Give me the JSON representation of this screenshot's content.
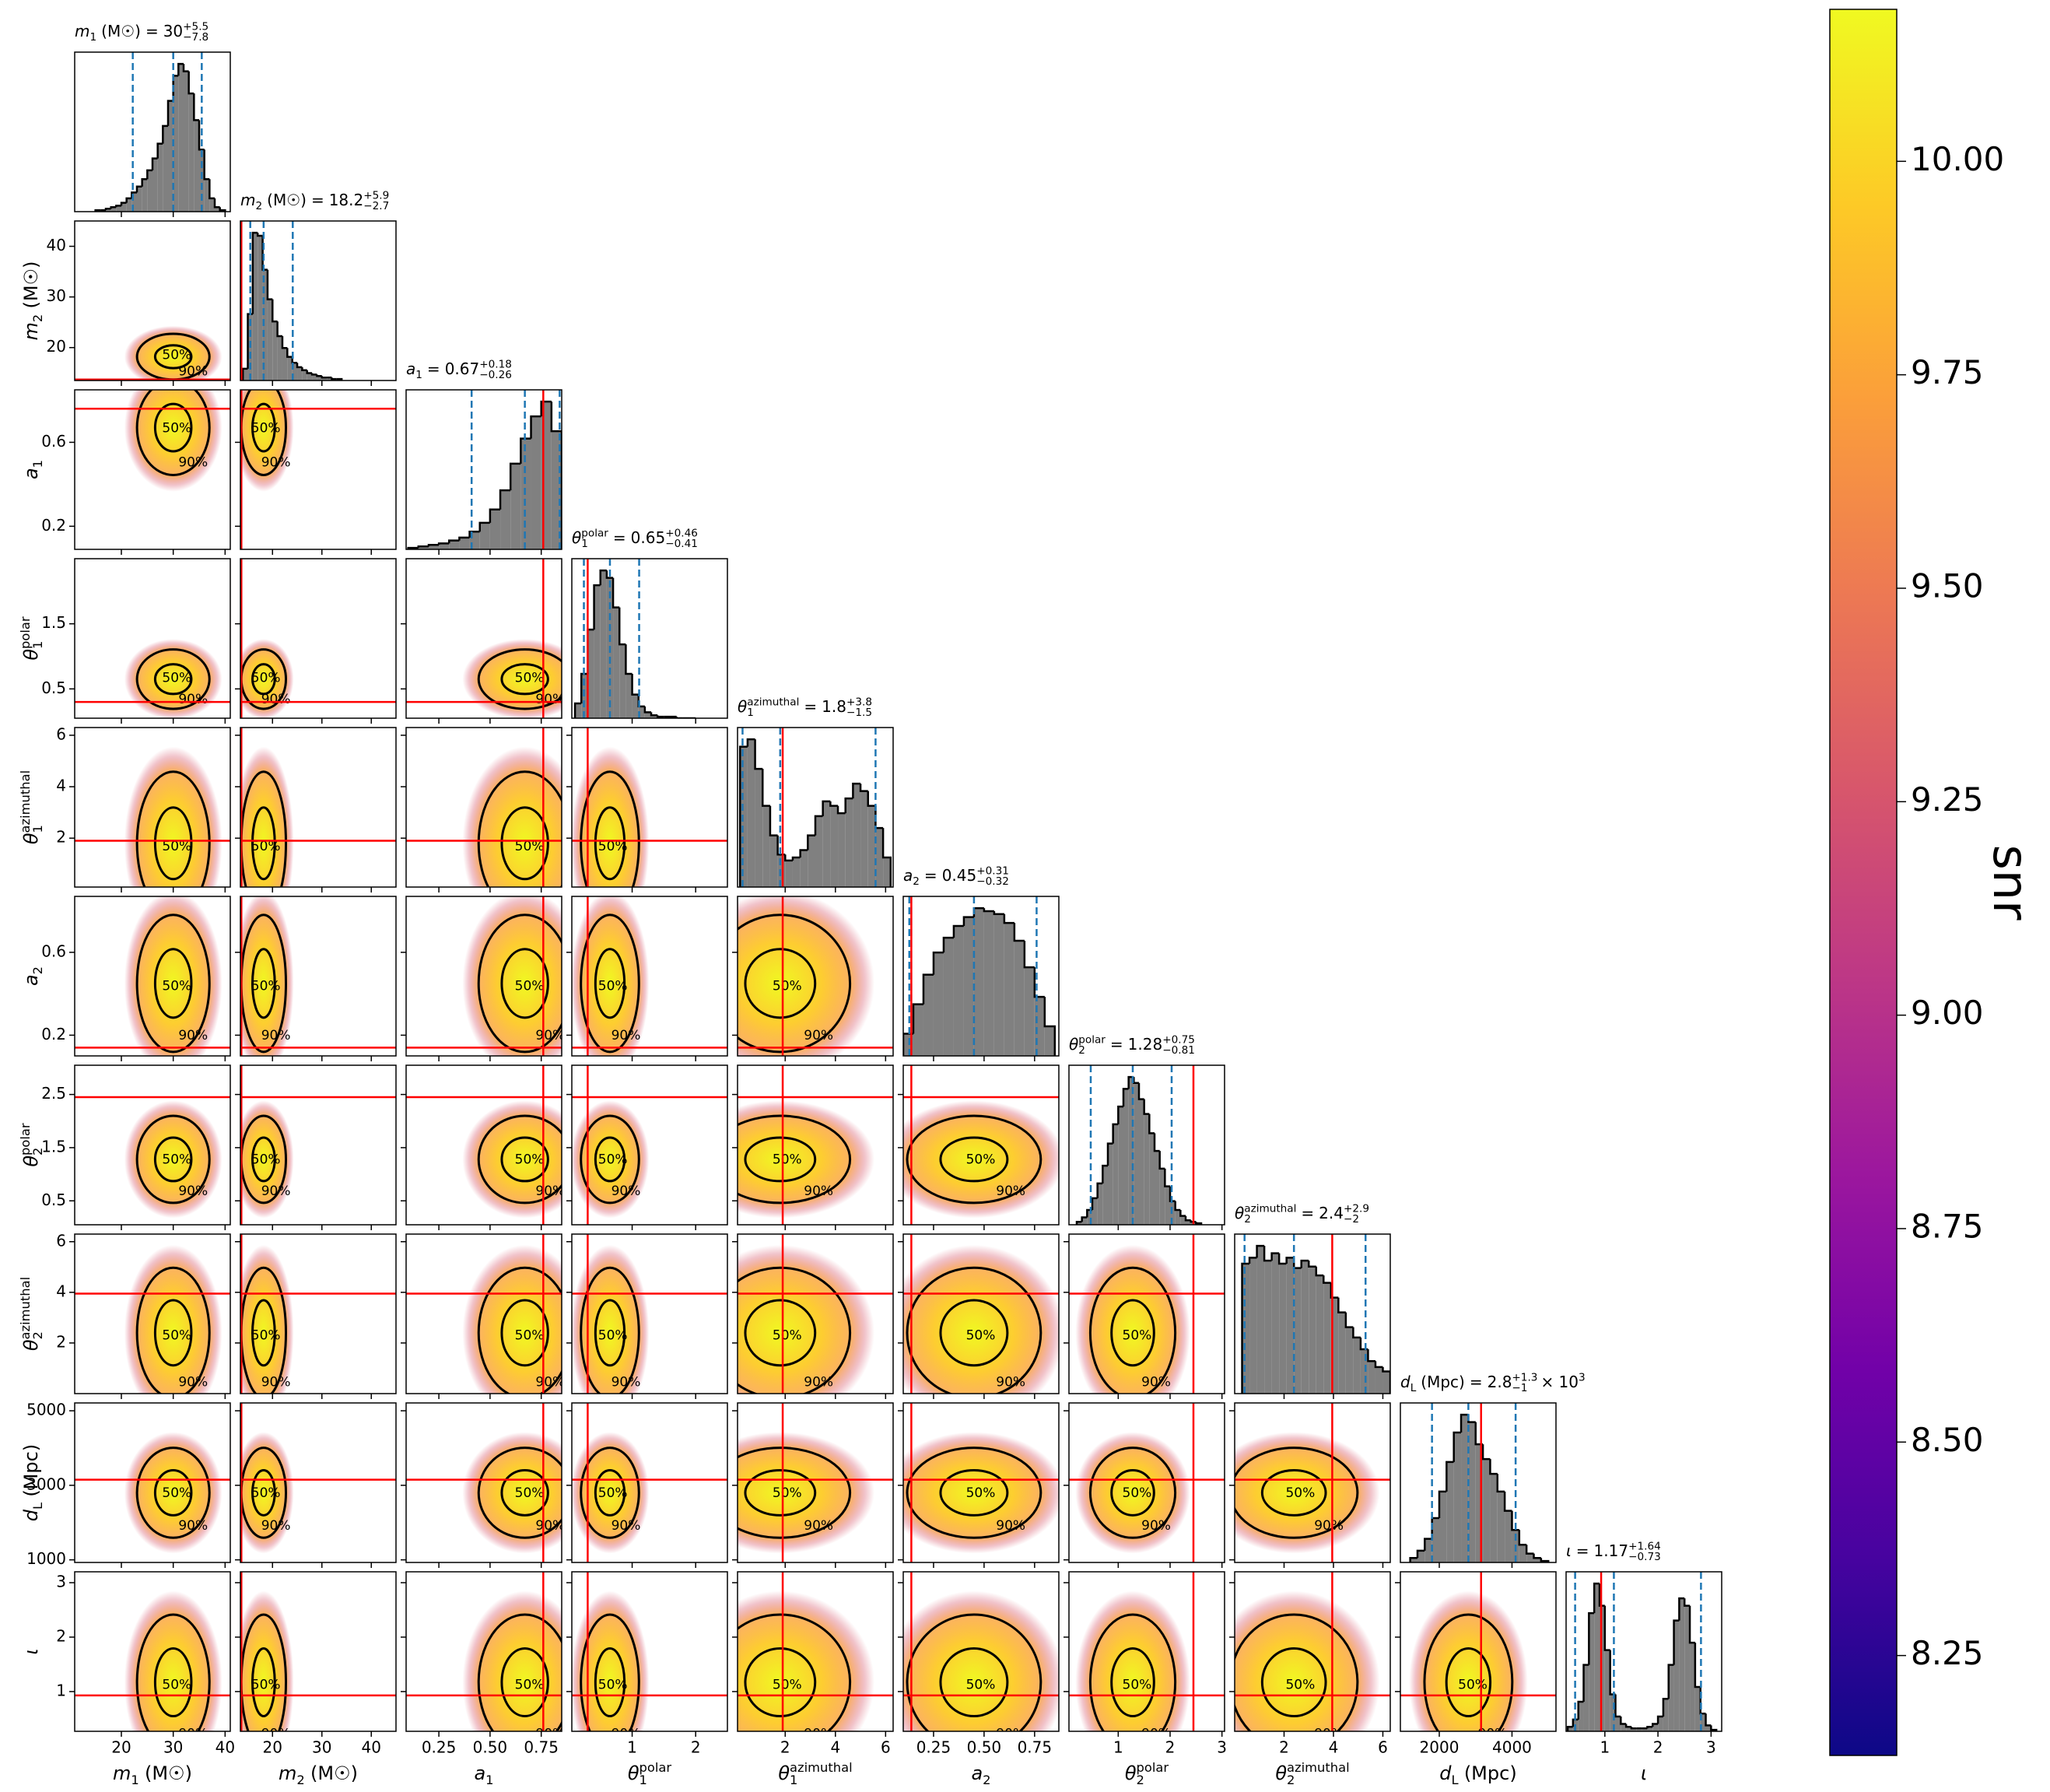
{
  "chart_data": {
    "type": "corner",
    "equals": "=",
    "contour_labels": [
      "50%",
      "90%"
    ],
    "hist_ylim": [
      0,
      108
    ],
    "hist_color": "#808080",
    "quantile_color": "#1f77b4",
    "truth_color": "#ff0000",
    "contour_color": "#000000",
    "colorbar": {
      "label": "snr",
      "lim": [
        8.133,
        10.178
      ],
      "ticks": [
        8.25,
        {
          "value": 8.5,
          "label": "8.50"
        },
        8.75,
        {
          "value": 9,
          "label": "9.00"
        },
        9.25,
        {
          "value": 9.5,
          "label": "9.50"
        },
        9.75,
        {
          "value": 10,
          "label": "10.00"
        }
      ],
      "colors": [
        "#0d0887",
        "#46039f",
        "#7201a8",
        "#9c179e",
        "#bd3786",
        "#d8576b",
        "#ed7953",
        "#fb9f3a",
        "#fdca26",
        "#f0f921"
      ]
    },
    "params": [
      {
        "symbol": "m",
        "sub": "1",
        "unit": "(M☉)",
        "median": "30",
        "plus": "+5.5",
        "minus": "−7.8",
        "lim": [
          11,
          41
        ],
        "xticks": [
          20,
          30,
          40
        ],
        "bins": [
          15,
          16,
          17,
          18,
          19,
          20,
          21,
          22,
          23,
          24,
          25,
          26,
          27,
          28,
          29,
          30,
          31,
          32,
          33,
          34,
          35,
          36,
          37,
          38,
          39,
          40
        ],
        "counts": [
          1,
          1,
          2,
          3,
          4,
          6,
          9,
          13,
          17,
          22,
          28,
          36,
          46,
          58,
          75,
          92,
          100,
          95,
          80,
          62,
          42,
          22,
          9,
          3,
          1
        ],
        "quantiles": [
          22.2,
          30,
          35.5
        ]
      },
      {
        "symbol": "m",
        "sub": "2",
        "unit": "(M☉)",
        "median": "18.2",
        "plus": "+5.9",
        "minus": "−2.7",
        "lim": [
          13.5,
          45
        ],
        "xticks": [
          20,
          30,
          40
        ],
        "yticks": [
          20,
          30,
          40
        ],
        "bins": [
          14,
          15,
          16,
          17,
          18,
          19,
          20,
          21,
          22,
          23,
          24,
          25,
          26,
          27,
          28,
          29,
          30,
          31,
          32,
          33,
          34
        ],
        "counts": [
          8,
          45,
          100,
          98,
          75,
          55,
          40,
          30,
          22,
          16,
          12,
          9,
          7,
          5,
          4,
          3,
          2,
          2,
          1,
          1
        ],
        "quantiles": [
          15.5,
          18.2,
          24.1
        ],
        "truth": 13.7
      },
      {
        "symbol": "a",
        "sub": "1",
        "median": "0.67",
        "plus": "+0.18",
        "minus": "−0.26",
        "lim": [
          0.09,
          0.85
        ],
        "xticks": [
          0.25,
          {
            "value": 0.5,
            "label": "0.50"
          },
          0.75
        ],
        "yticks": [
          0.2,
          0.6
        ],
        "bins": [
          0.1,
          0.15,
          0.2,
          0.25,
          0.3,
          0.35,
          0.4,
          0.45,
          0.5,
          0.55,
          0.6,
          0.65,
          0.7,
          0.75,
          0.8,
          0.85
        ],
        "counts": [
          1,
          2,
          3,
          4,
          6,
          8,
          12,
          18,
          27,
          40,
          58,
          75,
          90,
          100,
          80
        ],
        "quantiles": [
          0.41,
          0.67,
          0.84
        ],
        "truth": 0.76
      },
      {
        "symbol": "θ",
        "sub": "1",
        "sup": "polar",
        "median": "0.65",
        "plus": "+0.46",
        "minus": "−0.41",
        "lim": [
          0.05,
          2.5
        ],
        "xticks": [
          1,
          2
        ],
        "yticks": [
          0.5,
          1.5
        ],
        "bins": [
          0.1,
          0.2,
          0.3,
          0.4,
          0.5,
          0.6,
          0.7,
          0.8,
          0.9,
          1.0,
          1.1,
          1.2,
          1.3,
          1.4,
          1.5,
          1.6,
          1.7,
          1.8,
          1.9,
          2.0
        ],
        "counts": [
          10,
          30,
          60,
          90,
          100,
          95,
          75,
          50,
          30,
          16,
          8,
          4,
          2,
          1,
          1,
          1,
          0,
          0,
          0
        ],
        "quantiles": [
          0.24,
          0.65,
          1.11
        ],
        "truth": 0.3
      },
      {
        "symbol": "θ",
        "sub": "1",
        "sup": "azimuthal",
        "median": "1.8",
        "plus": "+3.8",
        "minus": "−1.5",
        "lim": [
          0.1,
          6.3
        ],
        "xticks": [
          2,
          4,
          6
        ],
        "yticks": [
          2,
          4,
          6
        ],
        "bins": [
          0.2,
          0.5,
          0.8,
          1.1,
          1.4,
          1.7,
          2.0,
          2.3,
          2.6,
          2.9,
          3.2,
          3.5,
          3.8,
          4.1,
          4.4,
          4.7,
          5.0,
          5.3,
          5.6,
          5.9,
          6.2
        ],
        "counts": [
          95,
          100,
          80,
          55,
          35,
          22,
          18,
          20,
          25,
          35,
          48,
          58,
          55,
          50,
          60,
          70,
          65,
          55,
          40,
          20
        ],
        "quantiles": [
          0.3,
          1.8,
          5.6
        ],
        "truth": 1.9
      },
      {
        "symbol": "a",
        "sub": "2",
        "median": "0.45",
        "plus": "+0.31",
        "minus": "−0.32",
        "lim": [
          0.1,
          0.87
        ],
        "xticks": [
          0.25,
          {
            "value": 0.5,
            "label": "0.50"
          },
          0.75
        ],
        "yticks": [
          0.2,
          0.6
        ],
        "bins": [
          0.1,
          0.15,
          0.2,
          0.25,
          0.3,
          0.35,
          0.4,
          0.45,
          0.5,
          0.55,
          0.6,
          0.65,
          0.7,
          0.75,
          0.8,
          0.85
        ],
        "counts": [
          15,
          35,
          55,
          70,
          80,
          88,
          94,
          100,
          98,
          96,
          90,
          78,
          60,
          40,
          20
        ],
        "quantiles": [
          0.13,
          0.45,
          0.76
        ],
        "truth": 0.14
      },
      {
        "symbol": "θ",
        "sub": "2",
        "sup": "polar",
        "median": "1.28",
        "plus": "+0.75",
        "minus": "−0.81",
        "lim": [
          0.05,
          3.05
        ],
        "xticks": [
          1,
          2,
          3
        ],
        "yticks": [
          0.5,
          1.5,
          2.5
        ],
        "bins": [
          0.2,
          0.3,
          0.4,
          0.5,
          0.6,
          0.7,
          0.8,
          0.9,
          1.0,
          1.1,
          1.2,
          1.3,
          1.4,
          1.5,
          1.6,
          1.7,
          1.8,
          1.9,
          2.0,
          2.1,
          2.2,
          2.3,
          2.4,
          2.5,
          2.6
        ],
        "counts": [
          2,
          5,
          10,
          18,
          28,
          40,
          55,
          68,
          80,
          92,
          100,
          96,
          85,
          75,
          62,
          50,
          38,
          26,
          16,
          10,
          6,
          3,
          2,
          1
        ],
        "quantiles": [
          0.47,
          1.28,
          2.03
        ],
        "truth": 2.45
      },
      {
        "symbol": "θ",
        "sub": "2",
        "sup": "azimuthal",
        "median": "2.4",
        "plus": "+2.9",
        "minus": "−2",
        "lim": [
          0,
          6.3
        ],
        "xticks": [
          2,
          4,
          6
        ],
        "yticks": [
          2,
          4,
          6
        ],
        "bins": [
          0.3,
          0.6,
          0.9,
          1.2,
          1.5,
          1.8,
          2.1,
          2.4,
          2.7,
          3.0,
          3.3,
          3.6,
          3.9,
          4.2,
          4.5,
          4.8,
          5.1,
          5.4,
          5.7,
          6.0,
          6.3
        ],
        "counts": [
          88,
          92,
          100,
          90,
          95,
          88,
          92,
          85,
          90,
          86,
          80,
          75,
          65,
          55,
          45,
          38,
          30,
          22,
          18,
          15
        ],
        "quantiles": [
          0.4,
          2.4,
          5.3
        ],
        "truth": 3.95
      },
      {
        "symbol": "d",
        "sub": "L",
        "unit": "(Mpc)",
        "median": "2.8",
        "plus": "+1.3",
        "minus": "−1",
        "scale": "× 10",
        "scale_exp": "3",
        "lim": [
          930,
          5210
        ],
        "xticks": [
          2000,
          4000
        ],
        "yticks": [
          1000,
          3000,
          5000
        ],
        "bins": [
          1200,
          1400,
          1600,
          1800,
          2000,
          2200,
          2400,
          2600,
          2800,
          3000,
          3200,
          3400,
          3600,
          3800,
          4000,
          4200,
          4400,
          4600,
          4800,
          5000
        ],
        "counts": [
          3,
          8,
          16,
          30,
          48,
          68,
          88,
          100,
          95,
          80,
          70,
          60,
          48,
          35,
          22,
          12,
          6,
          3,
          1
        ],
        "quantiles": [
          1800,
          2800,
          4100
        ],
        "truth": 3150
      },
      {
        "symbol": "ι",
        "median": "1.17",
        "plus": "+1.64",
        "minus": "−0.73",
        "lim": [
          0.27,
          3.2
        ],
        "xticks": [
          1,
          2,
          3
        ],
        "yticks": [
          1,
          2,
          3
        ],
        "bins": [
          0.3,
          0.4,
          0.5,
          0.6,
          0.7,
          0.8,
          0.9,
          1.0,
          1.1,
          1.2,
          1.3,
          1.4,
          1.5,
          1.6,
          1.7,
          1.8,
          1.9,
          2.0,
          2.1,
          2.2,
          2.3,
          2.4,
          2.5,
          2.6,
          2.7,
          2.8,
          2.9,
          3.0,
          3.1
        ],
        "counts": [
          3,
          8,
          20,
          45,
          80,
          100,
          85,
          55,
          25,
          10,
          5,
          3,
          2,
          2,
          2,
          3,
          5,
          10,
          22,
          45,
          75,
          90,
          85,
          60,
          30,
          12,
          4,
          1
        ],
        "quantiles": [
          0.44,
          1.17,
          2.81
        ],
        "truth": 0.93
      }
    ]
  }
}
